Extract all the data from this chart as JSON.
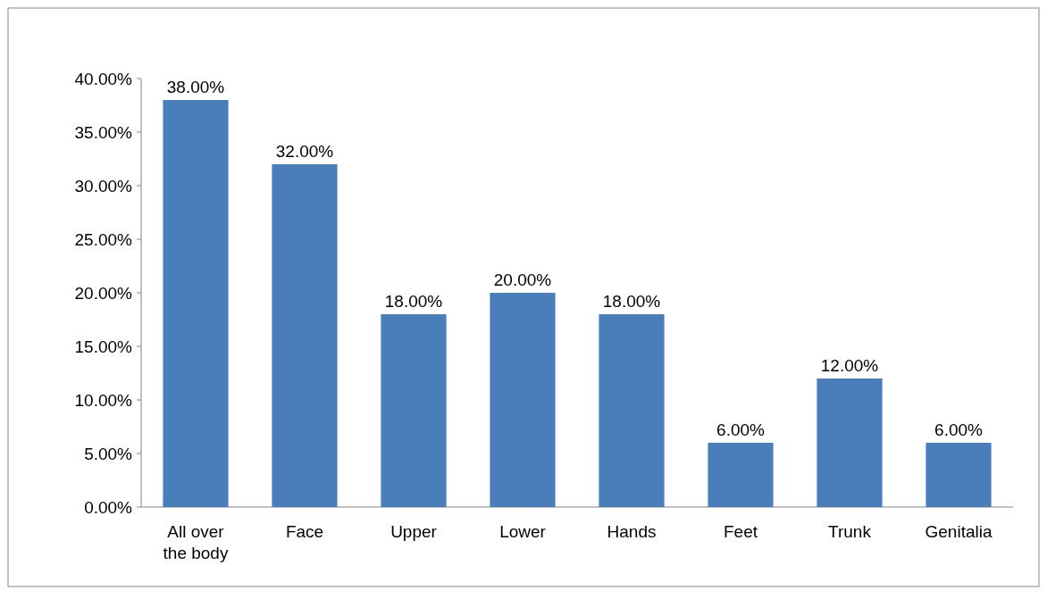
{
  "chart_data": {
    "type": "bar",
    "categories": [
      "All over the body",
      "Face",
      "Upper",
      "Lower",
      "Hands",
      "Feet",
      "Trunk",
      "Genitalia"
    ],
    "values": [
      38,
      32,
      18,
      20,
      18,
      6,
      12,
      6
    ],
    "value_labels": [
      "38.00%",
      "32.00%",
      "18.00%",
      "20.00%",
      "18.00%",
      "6.00%",
      "12.00%",
      "6.00%"
    ],
    "color": "#4a7ebb",
    "ylim": [
      0,
      40
    ],
    "yticks": [
      {
        "value": 0,
        "label": "0.00%"
      },
      {
        "value": 5,
        "label": "5.00%"
      },
      {
        "value": 10,
        "label": "10.00%"
      },
      {
        "value": 15,
        "label": "15.00%"
      },
      {
        "value": 20,
        "label": "20.00%"
      },
      {
        "value": 25,
        "label": "25.00%"
      },
      {
        "value": 30,
        "label": "30.00%"
      },
      {
        "value": 35,
        "label": "35.00%"
      },
      {
        "value": 40,
        "label": "40.00%"
      }
    ],
    "grid": false
  }
}
